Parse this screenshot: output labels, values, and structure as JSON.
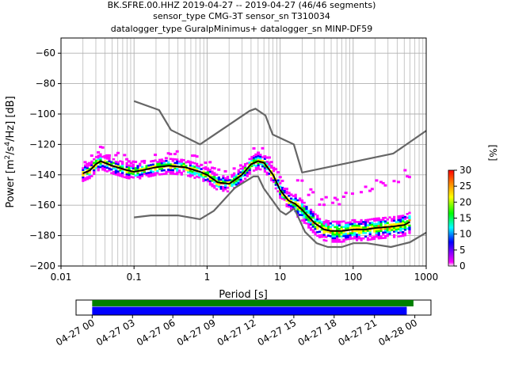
{
  "chart_data": [
    {
      "type": "line",
      "title_lines": [
        "BK.SFRE.00.HHZ   2019-04-27 -- 2019-04-27  (46/46 segments)",
        "sensor_type CMG-3T sensor_sn T310034",
        "datalogger_type GuralpMinimus+ datalogger_sn MINP-DF59"
      ],
      "xlabel": "Period [s]",
      "ylabel": "Power [m²/s⁴/Hz] [dB]",
      "x_scale": "log",
      "xlim": [
        0.01,
        1000
      ],
      "ylim": [
        -200,
        -50
      ],
      "x_ticks": [
        0.01,
        0.1,
        1,
        10,
        100,
        1000
      ],
      "x_tick_labels": [
        "0.01",
        "0.1",
        "1",
        "10",
        "100",
        "1000"
      ],
      "y_ticks": [
        -200,
        -180,
        -160,
        -140,
        -120,
        -100,
        -80,
        -60
      ],
      "y_tick_labels": [
        "−200",
        "−180",
        "−160",
        "−140",
        "−120",
        "−100",
        "−80",
        "−60"
      ],
      "grid": true,
      "series": [
        {
          "name": "NHNM",
          "color": "#666666",
          "x": [
            0.1,
            0.22,
            0.32,
            0.8,
            3.8,
            4.6,
            6.3,
            7.9,
            15.4,
            20,
            354.8,
            1000
          ],
          "y": [
            -91.5,
            -97.4,
            -110.5,
            -120,
            -98,
            -96.5,
            -101,
            -113.5,
            -120,
            -138.5,
            -126,
            -111
          ]
        },
        {
          "name": "NLNM",
          "color": "#666666",
          "x": [
            0.1,
            0.17,
            0.4,
            0.8,
            1.24,
            2.4,
            4.3,
            5,
            6,
            10,
            12,
            15.6,
            21.9,
            31.6,
            45,
            70,
            101,
            154,
            328,
            600,
            1000
          ],
          "y": [
            -168,
            -166.7,
            -166.7,
            -169.2,
            -163.7,
            -148.6,
            -141.1,
            -141.1,
            -149,
            -163.8,
            -166.2,
            -162.1,
            -177.5,
            -185,
            -187.5,
            -187.5,
            -185,
            -185,
            -187.5,
            -184.4,
            -178
          ]
        },
        {
          "name": "PSD median",
          "color": "#000000",
          "x": [
            0.02,
            0.025,
            0.03,
            0.035,
            0.05,
            0.08,
            0.1,
            0.13,
            0.2,
            0.3,
            0.5,
            0.8,
            1,
            1.4,
            2,
            3,
            4,
            5,
            6,
            8,
            10,
            13,
            16,
            20,
            25,
            30,
            40,
            50,
            70,
            100,
            150,
            200,
            350,
            500,
            600
          ],
          "y": [
            -139,
            -137,
            -133,
            -131,
            -134,
            -137,
            -138,
            -137,
            -135,
            -134,
            -135,
            -138,
            -140,
            -145,
            -146,
            -140,
            -133,
            -131,
            -132,
            -140,
            -150,
            -157,
            -159,
            -163,
            -168,
            -172,
            -176,
            -177,
            -177,
            -176,
            -176,
            -175,
            -174,
            -173,
            -171
          ]
        }
      ],
      "colorbar": {
        "label": "[%]",
        "range": [
          0,
          30
        ],
        "ticks": [
          "0",
          "5",
          "10",
          "15",
          "20",
          "25",
          "30"
        ],
        "colors": [
          "#ffffff",
          "#ff00ff",
          "#0000ff",
          "#00ffff",
          "#00ff00",
          "#ffff00",
          "#ff8800",
          "#ff0000"
        ]
      }
    },
    {
      "type": "bar",
      "name": "coverage timeline",
      "time_range": [
        "04-27 00",
        "04-28 00"
      ],
      "tick_labels": [
        "04-27 00",
        "04-27 03",
        "04-27 06",
        "04-27 09",
        "04-27 12",
        "04-27 15",
        "04-27 18",
        "04-27 21",
        "04-28 00"
      ],
      "bars": [
        {
          "color": "#008000",
          "start_hour": 0,
          "end_hour": 23.9
        },
        {
          "color": "#0000ff",
          "start_hour": 0,
          "end_hour": 23.4
        }
      ],
      "xlim_hours": [
        -1.2,
        25.2
      ]
    }
  ]
}
